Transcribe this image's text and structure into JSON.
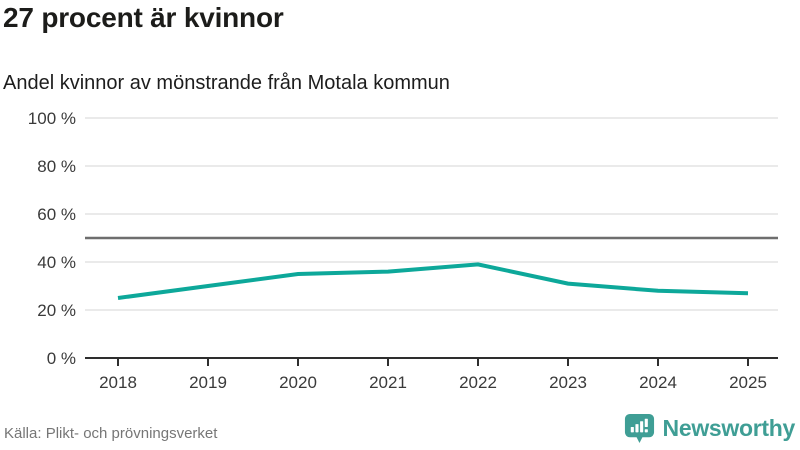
{
  "header": {
    "title": "27 procent är kvinnor",
    "subtitle": "Andel kvinnor av mönstrande från Motala kommun"
  },
  "chart_data": {
    "type": "line",
    "title": "27 procent är kvinnor",
    "subtitle": "Andel kvinnor av mönstrande från Motala kommun",
    "x": [
      "2018",
      "2019",
      "2020",
      "2021",
      "2022",
      "2023",
      "2024",
      "2025"
    ],
    "series": [
      {
        "name": "Andel kvinnor av mönstrande",
        "values": [
          25,
          30,
          35,
          36,
          39,
          31,
          28,
          27
        ]
      }
    ],
    "xlabel": "",
    "ylabel": "",
    "ylim": [
      0,
      100
    ],
    "yticks": [
      0,
      20,
      40,
      60,
      80,
      100
    ],
    "ytick_suffix": " %",
    "reference_line": 50,
    "grid": true,
    "legend": "none",
    "colors": {
      "line": "#0da89a",
      "grid": "#e4e4e4",
      "reference": "#6e6e6e",
      "axis": "#2e2e2e",
      "tick_label": "#3a3a3a"
    }
  },
  "footer": {
    "source": "Källa: Plikt- och prövningsverket",
    "brand": "Newsworthy",
    "brand_color": "#3f9e95"
  }
}
